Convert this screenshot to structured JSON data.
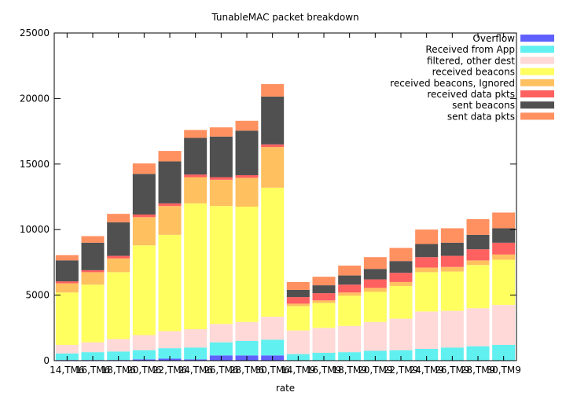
{
  "chart_data": {
    "type": "bar",
    "stacked": true,
    "title": "TunableMAC packet breakdown",
    "xlabel": "rate",
    "ylabel": "",
    "ylim": [
      0,
      25000
    ],
    "y_ticks": [
      "0",
      "5000",
      "10000",
      "15000",
      "20000",
      "25000"
    ],
    "grid": false,
    "legend_position": "top-right",
    "categories": [
      "14,TM6",
      "16,TM6",
      "18,TM6",
      "20,TM6",
      "22,TM6",
      "24,TM6",
      "26,TM6",
      "28,TM6",
      "30,TM6",
      "14,TM9",
      "16,TM9",
      "18,TM9",
      "20,TM9",
      "22,TM9",
      "24,TM9",
      "26,TM9",
      "28,TM9",
      "30,TM9"
    ],
    "x_tick_labels": [
      "14,TM6",
      "16,TM6",
      "18,TM6",
      "20,TM6",
      "22,TM6",
      "24,TM6",
      "26,TM6",
      "28,TM6",
      "30,TM6",
      "14,TM9",
      "16,TM9",
      "18,TM9",
      "20,TM9",
      "22,TM9",
      "24,TM9",
      "26,TM9",
      "28,TM9",
      "30,TM9"
    ],
    "series": [
      {
        "name": "Overflow",
        "color": "#6060ff",
        "values": [
          50,
          50,
          50,
          100,
          150,
          100,
          400,
          400,
          400,
          0,
          0,
          0,
          0,
          0,
          0,
          0,
          0,
          0
        ]
      },
      {
        "name": "Received from App",
        "color": "#60f0f0",
        "values": [
          500,
          600,
          650,
          700,
          800,
          900,
          1000,
          1100,
          1200,
          500,
          600,
          650,
          750,
          800,
          900,
          1000,
          1100,
          1200
        ]
      },
      {
        "name": "filtered, other dest",
        "color": "#ffd8d8",
        "values": [
          650,
          750,
          950,
          1150,
          1300,
          1400,
          1400,
          1450,
          1750,
          1800,
          1900,
          2000,
          2200,
          2400,
          2850,
          2800,
          2900,
          3050
        ]
      },
      {
        "name": "received beacons",
        "color": "#ffff60",
        "values": [
          4000,
          4400,
          5100,
          6850,
          7350,
          9600,
          9000,
          8800,
          9850,
          1850,
          1900,
          2300,
          2300,
          2500,
          3000,
          3000,
          3300,
          3450
        ]
      },
      {
        "name": "received beacons, Ignored",
        "color": "#ffc060",
        "values": [
          700,
          950,
          1050,
          2150,
          2200,
          2000,
          2000,
          2200,
          3100,
          200,
          200,
          250,
          300,
          300,
          350,
          350,
          350,
          400
        ]
      },
      {
        "name": "received data pkts",
        "color": "#ff6060",
        "values": [
          150,
          150,
          200,
          200,
          200,
          200,
          200,
          200,
          200,
          500,
          550,
          600,
          650,
          700,
          800,
          850,
          850,
          900
        ]
      },
      {
        "name": "sent beacons",
        "color": "#505050",
        "values": [
          1600,
          2100,
          2550,
          3100,
          3200,
          2800,
          3100,
          3400,
          3650,
          550,
          600,
          700,
          800,
          900,
          1000,
          1000,
          1100,
          1100
        ]
      },
      {
        "name": "sent data pkts",
        "color": "#ff9060",
        "values": [
          400,
          500,
          650,
          800,
          800,
          600,
          700,
          750,
          950,
          600,
          650,
          750,
          900,
          1000,
          1100,
          1100,
          1200,
          1200
        ]
      }
    ]
  }
}
